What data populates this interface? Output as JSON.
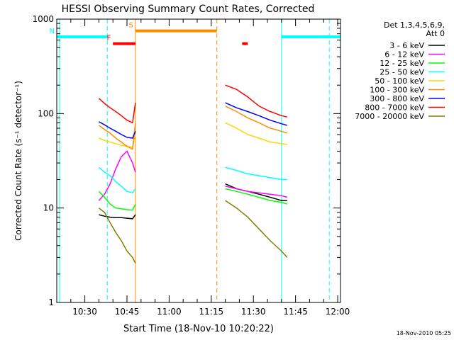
{
  "chart_data": {
    "type": "line",
    "title": "HESSI Observing Summary Count Rates, Corrected",
    "xlabel": "Start Time (18-Nov-10 10:20:22)",
    "ylabel": "Corrected Count Rate (s⁻¹ detector⁻¹)",
    "footer": "18-Nov-2010 05:25",
    "x_unit": "minutes of day",
    "xlim": [
      "10:20",
      "12:01"
    ],
    "x_ticks": [
      {
        "label": "10:30",
        "value": "10:30"
      },
      {
        "label": "10:45",
        "value": "10:45"
      },
      {
        "label": "11:00",
        "value": "11:00"
      },
      {
        "label": "11:15",
        "value": "11:15"
      },
      {
        "label": "11:30",
        "value": "11:30"
      },
      {
        "label": "11:45",
        "value": "11:45"
      },
      {
        "label": "12:00",
        "value": "12:00"
      }
    ],
    "y_scale": "log",
    "ylim": [
      1,
      1000
    ],
    "y_ticks": [
      {
        "label": "1",
        "value": 1
      },
      {
        "label": "10",
        "value": 10
      },
      {
        "label": "100",
        "value": 100
      },
      {
        "label": "1000",
        "value": 1000
      }
    ],
    "legend": {
      "title_line1": "Det 1,3,4,5,6,9,",
      "title_line2": "Att 0",
      "placement": "right"
    },
    "series": [
      {
        "name": "3 - 6 keV",
        "color": "#000000",
        "segments": [
          {
            "x": [
              "10:35",
              "10:37",
              "10:39",
              "10:41",
              "10:43",
              "10:45",
              "10:47",
              "10:48"
            ],
            "y": [
              8.5,
              8.2,
              8.0,
              7.9,
              7.9,
              7.8,
              7.7,
              8.5
            ]
          },
          {
            "x": [
              "11:20",
              "11:24",
              "11:28",
              "11:32",
              "11:36",
              "11:40",
              "11:42"
            ],
            "y": [
              18,
              16,
              15,
              14,
              13,
              12,
              12
            ]
          }
        ]
      },
      {
        "name": "6 - 12 keV",
        "color": "#ff00ff",
        "segments": [
          {
            "x": [
              "10:35",
              "10:37",
              "10:39",
              "10:41",
              "10:43",
              "10:45",
              "10:47",
              "10:48"
            ],
            "y": [
              12,
              14,
              18,
              26,
              35,
              40,
              30,
              24
            ]
          },
          {
            "x": [
              "11:20",
              "11:24",
              "11:28",
              "11:32",
              "11:36",
              "11:40",
              "11:42"
            ],
            "y": [
              17,
              16,
              15,
              14.5,
              14,
              13.5,
              13
            ]
          }
        ]
      },
      {
        "name": "12 - 25 keV",
        "color": "#00ff00",
        "segments": [
          {
            "x": [
              "10:35",
              "10:37",
              "10:39",
              "10:41",
              "10:43",
              "10:45",
              "10:47",
              "10:48"
            ],
            "y": [
              15,
              13,
              11,
              10,
              9.8,
              9.6,
              9.5,
              11
            ]
          },
          {
            "x": [
              "11:20",
              "11:24",
              "11:28",
              "11:32",
              "11:36",
              "11:40",
              "11:42"
            ],
            "y": [
              16,
              15,
              14,
              13,
              12,
              11.5,
              11
            ]
          }
        ]
      },
      {
        "name": "25 - 50 keV",
        "color": "#00ffff",
        "segments": [
          {
            "x": [
              "10:35",
              "10:37",
              "10:39",
              "10:41",
              "10:43",
              "10:45",
              "10:47",
              "10:48"
            ],
            "y": [
              27,
              24,
              22,
              19,
              17,
              15,
              14.5,
              16
            ]
          },
          {
            "x": [
              "11:20",
              "11:24",
              "11:28",
              "11:32",
              "11:36",
              "11:40",
              "11:42"
            ],
            "y": [
              27,
              25,
              23,
              22,
              21,
              20,
              20
            ]
          }
        ]
      },
      {
        "name": "50 - 100 keV",
        "color": "#ffd700",
        "segments": [
          {
            "x": [
              "10:35",
              "10:37",
              "10:39",
              "10:41",
              "10:43",
              "10:45",
              "10:47",
              "10:48"
            ],
            "y": [
              55,
              52,
              50,
              48,
              46,
              45,
              44,
              60
            ]
          },
          {
            "x": [
              "11:20",
              "11:24",
              "11:28",
              "11:32",
              "11:36",
              "11:40",
              "11:42"
            ],
            "y": [
              80,
              70,
              60,
              55,
              50,
              48,
              47
            ]
          }
        ]
      },
      {
        "name": "100 - 300 keV",
        "color": "#ff8c00",
        "segments": [
          {
            "x": [
              "10:35",
              "10:37",
              "10:39",
              "10:41",
              "10:43",
              "10:45",
              "10:47",
              "10:48"
            ],
            "y": [
              75,
              68,
              62,
              55,
              50,
              45,
              42,
              80
            ]
          },
          {
            "x": [
              "11:20",
              "11:24",
              "11:28",
              "11:32",
              "11:36",
              "11:40",
              "11:42"
            ],
            "y": [
              120,
              105,
              90,
              80,
              70,
              65,
              62
            ]
          }
        ]
      },
      {
        "name": "300 - 800 keV",
        "color": "#0000ff",
        "segments": [
          {
            "x": [
              "10:35",
              "10:37",
              "10:39",
              "10:41",
              "10:43",
              "10:45",
              "10:47",
              "10:48"
            ],
            "y": [
              82,
              76,
              70,
              65,
              60,
              56,
              55,
              65
            ]
          },
          {
            "x": [
              "11:20",
              "11:24",
              "11:28",
              "11:32",
              "11:36",
              "11:40",
              "11:42"
            ],
            "y": [
              130,
              115,
              105,
              95,
              85,
              78,
              75
            ]
          }
        ]
      },
      {
        "name": "800 - 7000 keV",
        "color": "#ff0000",
        "segments": [
          {
            "x": [
              "10:35",
              "10:37",
              "10:39",
              "10:41",
              "10:43",
              "10:45",
              "10:47",
              "10:48"
            ],
            "y": [
              145,
              128,
              115,
              105,
              95,
              85,
              80,
              130
            ]
          },
          {
            "x": [
              "11:20",
              "11:24",
              "11:28",
              "11:32",
              "11:36",
              "11:40",
              "11:42"
            ],
            "y": [
              200,
              180,
              150,
              120,
              105,
              95,
              92
            ]
          }
        ]
      },
      {
        "name": "7000 - 20000 keV",
        "color": "#808000",
        "segments": [
          {
            "x": [
              "10:35",
              "10:37",
              "10:39",
              "10:41",
              "10:43",
              "10:45",
              "10:47",
              "10:48"
            ],
            "y": [
              10,
              9,
              7,
              5.5,
              4.5,
              3.5,
              3,
              2.6
            ]
          },
          {
            "x": [
              "11:20",
              "11:24",
              "11:28",
              "11:32",
              "11:36",
              "11:40",
              "11:42"
            ],
            "y": [
              12,
              10,
              8,
              6,
              4.5,
              3.5,
              3
            ]
          }
        ]
      }
    ],
    "vertical_markers": [
      {
        "x": "10:21",
        "color": "#00ffff",
        "style": "solid"
      },
      {
        "x": "10:38",
        "color": "#00ffff",
        "style": "dashed"
      },
      {
        "x": "10:48",
        "color": "#ff8c00",
        "style": "solid"
      },
      {
        "x": "11:17",
        "color": "#ff8c00",
        "style": "dashed"
      },
      {
        "x": "11:40",
        "color": "#00ffff",
        "style": "solid"
      },
      {
        "x": "11:57",
        "color": "#00ffff",
        "style": "dashed"
      }
    ],
    "flag_bars": [
      {
        "label": "N",
        "color": "#00ffff",
        "x0": "10:20",
        "x1": "10:38",
        "y": 650
      },
      {
        "label": "",
        "color": "#00ffff",
        "x0": "11:40",
        "x1": "12:01",
        "y": 650
      },
      {
        "label": "S",
        "color": "#ff8c00",
        "x0": "10:48",
        "x1": "11:17",
        "y": 750
      },
      {
        "label": "F",
        "color": "#ff0000",
        "x0": "10:40",
        "x1": "10:48",
        "y": 550
      },
      {
        "label": "",
        "color": "#ff0000",
        "x0": "11:26",
        "x1": "11:28",
        "y": 550
      }
    ]
  }
}
